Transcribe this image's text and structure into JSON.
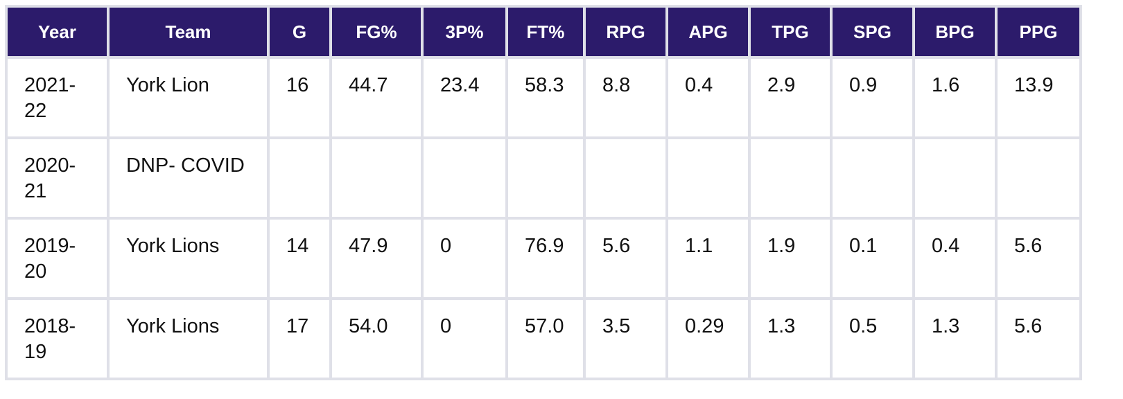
{
  "columns": [
    "Year",
    "Team",
    "G",
    "FG%",
    "3P%",
    "FT%",
    "RPG",
    "APG",
    "TPG",
    "SPG",
    "BPG",
    "PPG"
  ],
  "rows": [
    [
      "2021-22",
      "York Lion",
      "16",
      "44.7",
      "23.4",
      "58.3",
      "8.8",
      "0.4",
      "2.9",
      "0.9",
      "1.6",
      "13.9"
    ],
    [
      "2020-21",
      "DNP- COVID",
      "",
      "",
      "",
      "",
      "",
      "",
      "",
      "",
      "",
      ""
    ],
    [
      "2019-20",
      "York Lions",
      "14",
      "47.9",
      "0",
      "76.9",
      "5.6",
      "1.1",
      "1.9",
      "0.1",
      "0.4",
      "5.6"
    ],
    [
      "2018-19",
      "York Lions",
      "17",
      "54.0",
      "0",
      "57.0",
      "3.5",
      "0.29",
      "1.3",
      "0.5",
      "1.3",
      "5.6"
    ]
  ],
  "colors": {
    "header_bg": "#2c1b6b",
    "header_text": "#ffffff",
    "grid": "#dfe0e8",
    "cell_bg": "#ffffff",
    "cell_text": "#111111"
  }
}
